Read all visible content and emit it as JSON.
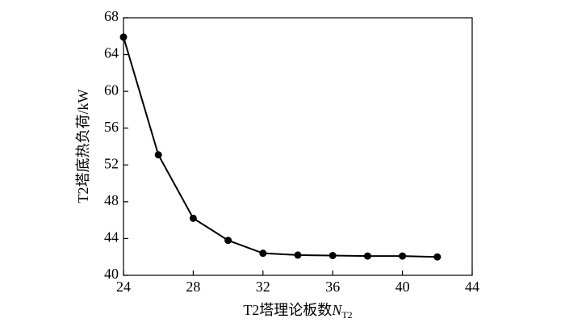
{
  "chart_data": {
    "type": "line",
    "xlabel": {
      "text": "T2塔理论板数",
      "symbol": "N",
      "subscript": "T2"
    },
    "ylabel": "T2塔底热负荷/kW",
    "x": [
      24,
      26,
      28,
      30,
      32,
      34,
      36,
      38,
      40,
      42
    ],
    "series": [
      {
        "color": "#000000",
        "values": [
          65.9,
          53.1,
          46.2,
          43.8,
          42.4,
          42.2,
          42.15,
          42.1,
          42.1,
          42.0
        ]
      }
    ],
    "xlim": [
      24,
      44
    ],
    "xticks": [
      24,
      28,
      32,
      36,
      40,
      44
    ],
    "ylim": [
      40,
      68
    ],
    "yticks": [
      40,
      44,
      48,
      52,
      56,
      60,
      64,
      68
    ]
  }
}
